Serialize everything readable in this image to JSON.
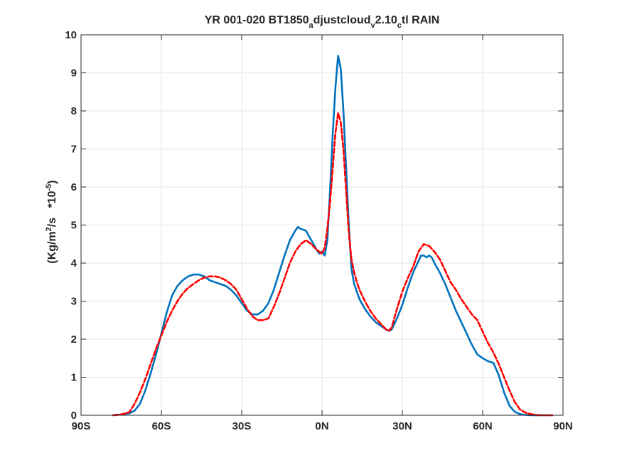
{
  "chart_data": {
    "type": "line",
    "title": {
      "prefix": "YR 001-020 BT1850",
      "sub1": "a",
      "mid1": "djustcloud",
      "sub2": "v",
      "mid2": "2.10",
      "sub3": "c",
      "suffix": "tl RAIN"
    },
    "ylabel": {
      "part1": "(Kg/m",
      "sup1": "2",
      "part2": "/s   *10",
      "sup2": "-5",
      "part3": ")"
    },
    "xlim": [
      -90,
      90
    ],
    "ylim": [
      0,
      10
    ],
    "xticks": [
      {
        "value": -90,
        "label": "90S"
      },
      {
        "value": -60,
        "label": "60S"
      },
      {
        "value": -30,
        "label": "30S"
      },
      {
        "value": 0,
        "label": "0N"
      },
      {
        "value": 30,
        "label": "30N"
      },
      {
        "value": 60,
        "label": "60N"
      },
      {
        "value": 90,
        "label": "90N"
      }
    ],
    "yticks": [
      {
        "value": 0,
        "label": "0"
      },
      {
        "value": 1,
        "label": "1"
      },
      {
        "value": 2,
        "label": "2"
      },
      {
        "value": 3,
        "label": "3"
      },
      {
        "value": 4,
        "label": "4"
      },
      {
        "value": 5,
        "label": "5"
      },
      {
        "value": 6,
        "label": "6"
      },
      {
        "value": 7,
        "label": "7"
      },
      {
        "value": 8,
        "label": "8"
      },
      {
        "value": 9,
        "label": "9"
      },
      {
        "value": 10,
        "label": "10"
      }
    ],
    "grid": true,
    "series": [
      {
        "style": "solid",
        "color": "#0072BD",
        "x": [
          -78,
          -75,
          -72,
          -70,
          -68,
          -66,
          -64,
          -62,
          -60,
          -58,
          -56,
          -54,
          -52,
          -50,
          -48,
          -46,
          -44,
          -42,
          -40,
          -38,
          -36,
          -34,
          -32,
          -30,
          -28,
          -26,
          -24,
          -22,
          -20,
          -18,
          -16,
          -14,
          -12,
          -10,
          -9,
          -8,
          -6,
          -4,
          -2,
          -1,
          0,
          1,
          2,
          3,
          4,
          5,
          6,
          7,
          8,
          9,
          10,
          11,
          12,
          13,
          14,
          16,
          18,
          20,
          22,
          24,
          25,
          26,
          28,
          30,
          32,
          34,
          36,
          37,
          38,
          39,
          40,
          41,
          42,
          44,
          46,
          48,
          50,
          52,
          54,
          56,
          58,
          60,
          62,
          63,
          64,
          66,
          68,
          70,
          72,
          74,
          76,
          78,
          80,
          82,
          84,
          86
        ],
        "y": [
          0.0,
          0.02,
          0.05,
          0.12,
          0.3,
          0.65,
          1.1,
          1.6,
          2.15,
          2.7,
          3.15,
          3.4,
          3.55,
          3.65,
          3.7,
          3.7,
          3.65,
          3.55,
          3.5,
          3.45,
          3.4,
          3.3,
          3.15,
          2.95,
          2.75,
          2.65,
          2.65,
          2.75,
          2.95,
          3.3,
          3.75,
          4.2,
          4.6,
          4.85,
          4.95,
          4.9,
          4.85,
          4.6,
          4.35,
          4.25,
          4.3,
          4.2,
          4.6,
          5.9,
          7.4,
          8.6,
          9.45,
          9.1,
          8.0,
          6.5,
          5.0,
          3.85,
          3.45,
          3.25,
          3.05,
          2.8,
          2.6,
          2.45,
          2.35,
          2.25,
          2.22,
          2.25,
          2.55,
          2.9,
          3.35,
          3.75,
          4.05,
          4.2,
          4.2,
          4.15,
          4.2,
          4.15,
          4.0,
          3.75,
          3.45,
          3.1,
          2.75,
          2.45,
          2.15,
          1.85,
          1.6,
          1.5,
          1.42,
          1.4,
          1.38,
          1.05,
          0.6,
          0.25,
          0.09,
          0.03,
          0.01,
          0.0,
          0.0,
          0.0,
          0.0,
          0.0
        ]
      },
      {
        "style": "dashed",
        "color": "#FF0000",
        "x": [
          -78,
          -75,
          -72,
          -70,
          -68,
          -66,
          -64,
          -62,
          -60,
          -58,
          -56,
          -54,
          -52,
          -50,
          -48,
          -46,
          -44,
          -42,
          -40,
          -38,
          -36,
          -34,
          -32,
          -30,
          -28,
          -26,
          -24,
          -22,
          -20,
          -18,
          -16,
          -14,
          -12,
          -10,
          -8,
          -6,
          -4,
          -2,
          -1,
          0,
          1,
          2,
          3,
          4,
          5,
          6,
          7,
          8,
          9,
          10,
          11,
          12,
          13,
          14,
          16,
          18,
          20,
          22,
          24,
          25,
          26,
          28,
          30,
          32,
          34,
          36,
          38,
          40,
          42,
          44,
          46,
          48,
          50,
          52,
          54,
          56,
          58,
          60,
          62,
          64,
          66,
          68,
          70,
          72,
          74,
          76,
          78,
          80,
          82,
          84,
          86
        ],
        "y": [
          0.0,
          0.02,
          0.08,
          0.3,
          0.6,
          0.95,
          1.35,
          1.75,
          2.1,
          2.45,
          2.75,
          3.0,
          3.2,
          3.35,
          3.45,
          3.55,
          3.62,
          3.65,
          3.65,
          3.62,
          3.55,
          3.45,
          3.3,
          3.05,
          2.8,
          2.6,
          2.5,
          2.5,
          2.55,
          2.85,
          3.2,
          3.6,
          4.0,
          4.3,
          4.5,
          4.6,
          4.5,
          4.35,
          4.3,
          4.25,
          4.4,
          4.9,
          5.6,
          6.5,
          7.4,
          7.95,
          7.7,
          7.0,
          5.9,
          4.8,
          4.1,
          3.75,
          3.5,
          3.3,
          3.0,
          2.75,
          2.55,
          2.4,
          2.25,
          2.22,
          2.3,
          2.8,
          3.25,
          3.6,
          3.9,
          4.3,
          4.5,
          4.45,
          4.3,
          4.1,
          3.8,
          3.5,
          3.3,
          3.05,
          2.85,
          2.65,
          2.5,
          2.2,
          1.9,
          1.65,
          1.35,
          1.0,
          0.65,
          0.35,
          0.15,
          0.07,
          0.03,
          0.01,
          0.0,
          0.0,
          0.0
        ]
      }
    ]
  }
}
